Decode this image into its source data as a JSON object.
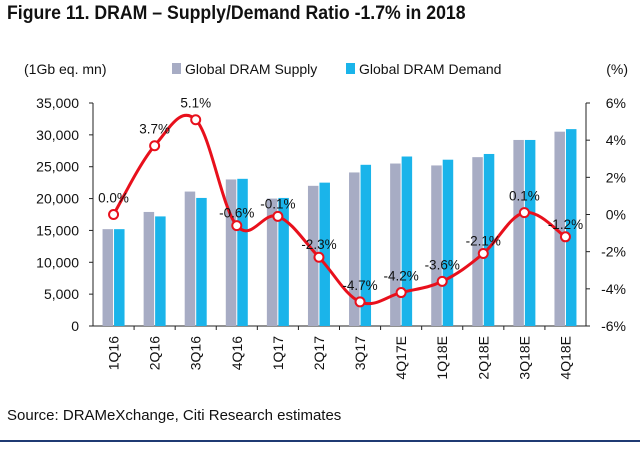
{
  "chart_data": {
    "type": "bar+line",
    "title": "Figure 11. DRAM – Supply/Demand Ratio -1.7% in 2018",
    "left_axis_label": "(1Gb eq. mn)",
    "right_axis_label": "(%)",
    "categories": [
      "1Q16",
      "2Q16",
      "3Q16",
      "4Q16",
      "1Q17",
      "2Q17",
      "3Q17",
      "4Q17E",
      "1Q18E",
      "2Q18E",
      "3Q18E",
      "4Q18E"
    ],
    "left_ticks": [
      "35,000",
      "30,000",
      "25,000",
      "20,000",
      "15,000",
      "10,000",
      "5,000",
      "0"
    ],
    "right_ticks": [
      "6%",
      "4%",
      "2%",
      "0%",
      "-2%",
      "-4%",
      "-6%"
    ],
    "ylim_left": [
      0,
      35000
    ],
    "ylim_right": [
      -6,
      6
    ],
    "series": [
      {
        "name": "Global DRAM Supply",
        "axis": "left",
        "color": "#a7acc4",
        "values": [
          15200,
          17900,
          21100,
          23000,
          20000,
          22000,
          24100,
          25500,
          25200,
          26500,
          29200,
          30500
        ]
      },
      {
        "name": "Global DRAM Demand",
        "axis": "left",
        "color": "#1ab4ea",
        "values": [
          15200,
          17200,
          20100,
          23100,
          20100,
          22500,
          25300,
          26600,
          26100,
          27000,
          29200,
          30900
        ]
      },
      {
        "name": "Supply/Demand Ratio",
        "axis": "right",
        "color": "#e8101c",
        "values": [
          0.0,
          3.7,
          5.1,
          -0.6,
          -0.1,
          -2.3,
          -4.7,
          -4.2,
          -3.6,
          -2.1,
          0.1,
          -1.2
        ],
        "labels": [
          "0.0%",
          "3.7%",
          "5.1%",
          "-0.6%",
          "-0.1%",
          "-2.3%",
          "-4.7%",
          "-4.2%",
          "-3.6%",
          "-2.1%",
          "0.1%",
          "-1.2%"
        ]
      }
    ],
    "legend_position": "top"
  },
  "source": "Source: DRAMeXchange, Citi Research estimates"
}
